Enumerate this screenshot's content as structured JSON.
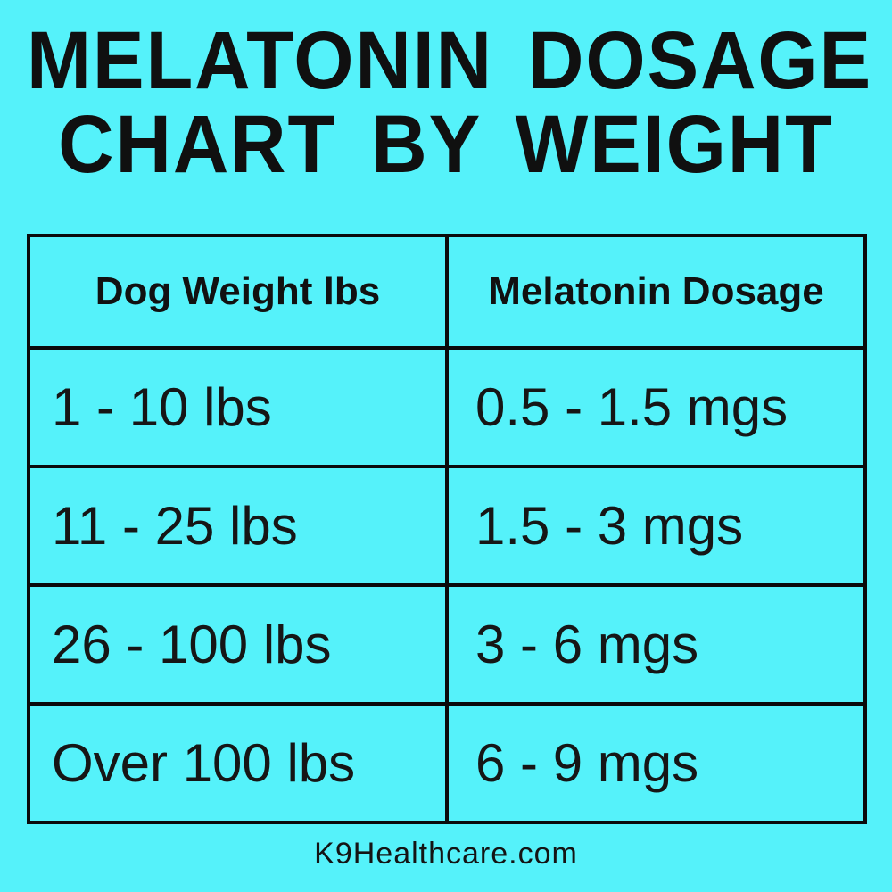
{
  "page": {
    "title_line1": "MELATONIN DOSAGE",
    "title_line2": "CHART BY WEIGHT",
    "footer": "K9Healthcare.com"
  },
  "colors": {
    "background": "#55F2FA",
    "text": "#121212",
    "table_border": "#0B0B0B"
  },
  "table": {
    "headers": [
      "Dog Weight lbs",
      "Melatonin Dosage"
    ],
    "rows": [
      [
        "1 - 10 lbs",
        "0.5 - 1.5 mgs"
      ],
      [
        "11 - 25 lbs",
        "1.5 - 3 mgs"
      ],
      [
        "26 - 100 lbs",
        "3 - 6 mgs"
      ],
      [
        "Over 100 lbs",
        "6 - 9 mgs"
      ]
    ]
  },
  "chart_data": {
    "type": "table",
    "title": "Melatonin Dosage Chart By Weight",
    "columns": [
      "Dog Weight lbs",
      "Melatonin Dosage"
    ],
    "rows": [
      {
        "dog_weight_lbs": "1 - 10 lbs",
        "melatonin_dosage": "0.5 - 1.5 mgs"
      },
      {
        "dog_weight_lbs": "11 - 25 lbs",
        "melatonin_dosage": "1.5 - 3 mgs"
      },
      {
        "dog_weight_lbs": "26 - 100 lbs",
        "melatonin_dosage": "3 - 6 mgs"
      },
      {
        "dog_weight_lbs": "Over 100 lbs",
        "melatonin_dosage": "6 - 9 mgs"
      }
    ],
    "source_label": "K9Healthcare.com"
  }
}
